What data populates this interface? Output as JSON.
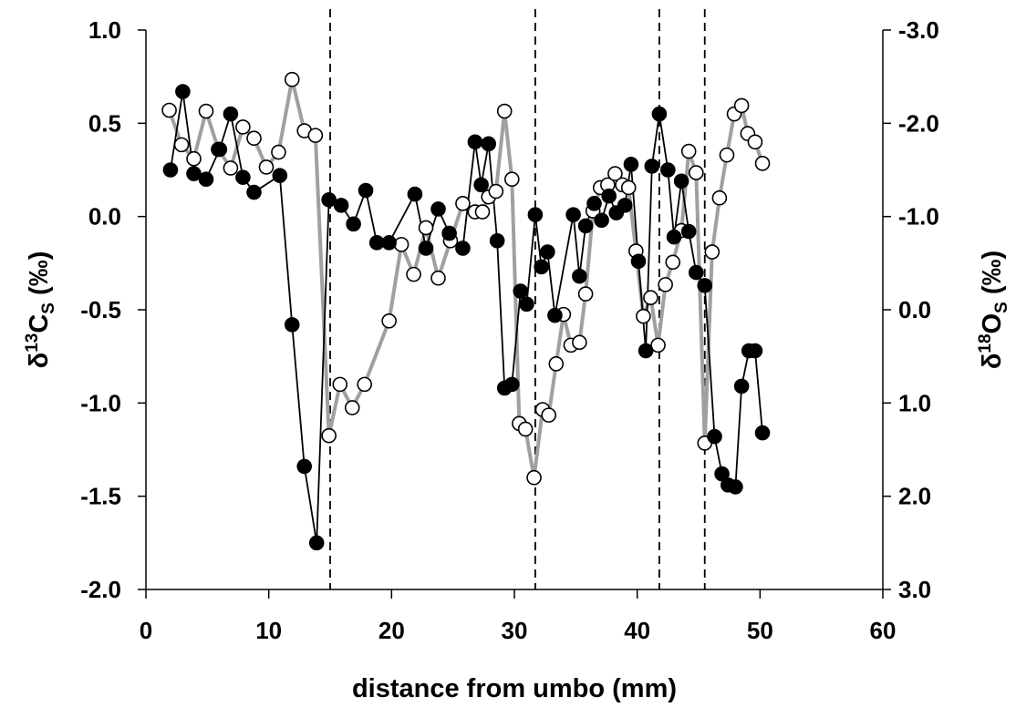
{
  "chart_data": {
    "type": "scatter",
    "xlabel": "distance from umbo (mm)",
    "ylabel_left": {
      "prefix": "δ",
      "sup": "13",
      "main": "C",
      "sub": "S",
      "suffix": " (‰)"
    },
    "ylabel_right": {
      "prefix": "δ",
      "sup": "18",
      "main": "O",
      "sub": "S",
      "suffix": " (‰)"
    },
    "xlim": [
      0,
      60
    ],
    "ylim_left": [
      -2.0,
      1.0
    ],
    "ylim_right": [
      3.0,
      -3.0
    ],
    "right_axis_inverted": true,
    "x_ticks": [
      "0",
      "10",
      "20",
      "30",
      "40",
      "50",
      "60"
    ],
    "y_left_ticks": [
      "1.0",
      "0.5",
      "0.0",
      "-0.5",
      "-1.0",
      "-1.5",
      "-2.0"
    ],
    "y_right_ticks": [
      "-3.0",
      "-2.0",
      "-1.0",
      "0.0",
      "1.0",
      "2.0",
      "3.0"
    ],
    "grid": false,
    "vertical_dashed_lines_x": [
      15.0,
      31.7,
      41.8,
      45.5
    ],
    "series": [
      {
        "axis": "left",
        "marker": "filled-circle",
        "line_color": "#000000",
        "marker_color": "#000000",
        "x": [
          2.0,
          3.0,
          3.9,
          4.9,
          6.0,
          6.9,
          7.9,
          8.8,
          10.9,
          11.9,
          12.9,
          13.9,
          14.9,
          15.9,
          16.9,
          17.9,
          18.8,
          19.8,
          21.9,
          22.8,
          23.8,
          24.7,
          25.8,
          26.8,
          27.3,
          27.9,
          28.6,
          29.2,
          29.8,
          30.5,
          31.0,
          31.7,
          32.2,
          32.7,
          33.3,
          34.8,
          35.3,
          35.8,
          36.5,
          37.1,
          37.7,
          38.3,
          39.0,
          39.5,
          40.1,
          40.7,
          41.2,
          41.8,
          42.5,
          43.0,
          43.6,
          44.2,
          44.8,
          45.5,
          46.3,
          46.9,
          47.4,
          48.0,
          48.5,
          49.1,
          49.6,
          50.2
        ],
        "y": [
          0.25,
          0.67,
          0.23,
          0.2,
          0.36,
          0.55,
          0.21,
          0.13,
          0.22,
          -0.58,
          -1.34,
          -1.75,
          0.09,
          0.06,
          -0.04,
          0.14,
          -0.14,
          -0.14,
          0.12,
          -0.17,
          0.04,
          -0.09,
          -0.17,
          0.4,
          0.17,
          0.39,
          -0.13,
          -0.92,
          -0.9,
          -0.4,
          -0.47,
          0.01,
          -0.27,
          -0.19,
          -0.53,
          0.01,
          -0.32,
          -0.05,
          0.07,
          -0.02,
          0.11,
          0.02,
          0.06,
          0.28,
          -0.24,
          -0.72,
          0.27,
          0.55,
          0.25,
          -0.11,
          0.19,
          -0.08,
          -0.3,
          -0.37,
          -1.18,
          -1.38,
          -1.44,
          -1.45,
          -0.91,
          -0.72,
          -0.72,
          -1.16
        ]
      },
      {
        "axis": "right",
        "marker": "open-circle",
        "line_color": "#a0a0a0",
        "marker_color": "#000000",
        "x": [
          1.9,
          2.9,
          3.9,
          4.9,
          5.9,
          6.9,
          7.9,
          8.8,
          9.8,
          10.8,
          11.9,
          12.9,
          13.8,
          14.9,
          15.8,
          16.8,
          17.8,
          19.8,
          20.8,
          21.8,
          22.8,
          23.8,
          24.8,
          25.8,
          26.8,
          27.4,
          27.9,
          28.5,
          29.2,
          29.8,
          30.4,
          30.9,
          31.6,
          32.3,
          32.8,
          33.4,
          34.0,
          34.6,
          35.3,
          35.8,
          36.4,
          37.0,
          37.6,
          38.2,
          38.8,
          39.3,
          39.9,
          40.5,
          41.1,
          41.7,
          42.3,
          42.9,
          43.6,
          44.2,
          44.8,
          45.5,
          46.1,
          46.7,
          47.3,
          47.9,
          48.5,
          49.0,
          49.6,
          50.2
        ],
        "y": [
          -2.14,
          -1.77,
          -1.62,
          -2.13,
          -1.72,
          -1.52,
          -1.96,
          -1.84,
          -1.53,
          -1.69,
          -2.47,
          -1.92,
          -1.87,
          1.35,
          0.8,
          1.05,
          0.8,
          0.12,
          -0.7,
          -0.38,
          -0.88,
          -0.34,
          -0.74,
          -1.14,
          -1.05,
          -1.05,
          -1.21,
          -1.27,
          -2.13,
          -1.4,
          1.22,
          1.28,
          1.8,
          1.07,
          1.13,
          0.58,
          0.05,
          0.38,
          0.35,
          -0.17,
          -1.06,
          -1.31,
          -1.34,
          -1.46,
          -1.34,
          -1.31,
          -0.63,
          0.07,
          -0.13,
          0.38,
          -0.27,
          -0.51,
          -0.85,
          -1.7,
          -1.47,
          1.43,
          -0.62,
          -1.2,
          -1.66,
          -2.1,
          -2.19,
          -1.89,
          -1.8,
          -1.57
        ]
      }
    ]
  }
}
